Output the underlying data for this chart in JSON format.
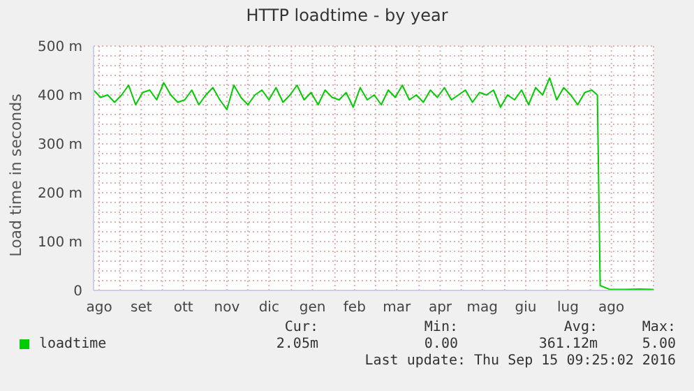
{
  "chart_data": {
    "type": "line",
    "title": "HTTP loadtime - by year",
    "ylabel": "Load time in seconds",
    "x": [
      "2015-08-13",
      "2015-08-18",
      "2015-08-23",
      "2015-08-28",
      "2015-09-02",
      "2015-09-07",
      "2015-09-12",
      "2015-09-17",
      "2015-09-22",
      "2015-09-27",
      "2015-10-02",
      "2015-10-07",
      "2015-10-12",
      "2015-10-17",
      "2015-10-22",
      "2015-10-27",
      "2015-11-01",
      "2015-11-06",
      "2015-11-11",
      "2015-11-16",
      "2015-11-21",
      "2015-11-26",
      "2015-12-01",
      "2015-12-06",
      "2015-12-11",
      "2015-12-16",
      "2015-12-21",
      "2015-12-26",
      "2015-12-31",
      "2016-01-05",
      "2016-01-10",
      "2016-01-15",
      "2016-01-20",
      "2016-01-25",
      "2016-01-30",
      "2016-02-04",
      "2016-02-09",
      "2016-02-14",
      "2016-02-19",
      "2016-02-24",
      "2016-02-29",
      "2016-03-05",
      "2016-03-10",
      "2016-03-15",
      "2016-03-20",
      "2016-03-25",
      "2016-03-30",
      "2016-04-04",
      "2016-04-09",
      "2016-04-14",
      "2016-04-19",
      "2016-04-24",
      "2016-04-29",
      "2016-05-04",
      "2016-05-09",
      "2016-05-14",
      "2016-05-19",
      "2016-05-24",
      "2016-05-29",
      "2016-06-03",
      "2016-06-08",
      "2016-06-13",
      "2016-06-18",
      "2016-06-23",
      "2016-06-28",
      "2016-07-03",
      "2016-07-08",
      "2016-07-13",
      "2016-07-18",
      "2016-07-23",
      "2016-07-28",
      "2016-08-02",
      "2016-08-06",
      "2016-08-08",
      "2016-08-15",
      "2016-08-25",
      "2016-09-05",
      "2016-09-15"
    ],
    "series": [
      {
        "name": "loadtime",
        "color": "#00cc00",
        "values": [
          410,
          395,
          400,
          385,
          400,
          420,
          380,
          405,
          410,
          390,
          425,
          400,
          385,
          390,
          410,
          380,
          400,
          415,
          390,
          370,
          420,
          395,
          380,
          400,
          410,
          390,
          415,
          385,
          400,
          420,
          390,
          405,
          380,
          410,
          395,
          390,
          405,
          375,
          415,
          390,
          400,
          380,
          410,
          395,
          420,
          390,
          400,
          385,
          410,
          395,
          415,
          390,
          400,
          410,
          385,
          405,
          400,
          410,
          375,
          400,
          390,
          410,
          380,
          415,
          400,
          435,
          390,
          415,
          400,
          380,
          405,
          410,
          400,
          10,
          2,
          2,
          3,
          2
        ]
      }
    ],
    "xlim": [
      "2015-08-13",
      "2016-09-15"
    ],
    "xticks": [
      {
        "value": "2015-08-17",
        "label": "ago"
      },
      {
        "value": "2015-09-01",
        "label": null
      },
      {
        "value": "2015-09-16",
        "label": "set"
      },
      {
        "value": "2015-10-01",
        "label": null
      },
      {
        "value": "2015-10-16",
        "label": "ott"
      },
      {
        "value": "2015-11-01",
        "label": null
      },
      {
        "value": "2015-11-16",
        "label": "nov"
      },
      {
        "value": "2015-12-01",
        "label": null
      },
      {
        "value": "2015-12-16",
        "label": "dic"
      },
      {
        "value": "2016-01-01",
        "label": null
      },
      {
        "value": "2016-01-16",
        "label": "gen"
      },
      {
        "value": "2016-02-01",
        "label": null
      },
      {
        "value": "2016-02-15",
        "label": "feb"
      },
      {
        "value": "2016-03-01",
        "label": null
      },
      {
        "value": "2016-03-16",
        "label": "mar"
      },
      {
        "value": "2016-04-01",
        "label": null
      },
      {
        "value": "2016-04-16",
        "label": "apr"
      },
      {
        "value": "2016-05-01",
        "label": null
      },
      {
        "value": "2016-05-16",
        "label": "mag"
      },
      {
        "value": "2016-06-01",
        "label": null
      },
      {
        "value": "2016-06-16",
        "label": "giu"
      },
      {
        "value": "2016-07-01",
        "label": null
      },
      {
        "value": "2016-07-16",
        "label": "lug"
      },
      {
        "value": "2016-08-01",
        "label": null
      },
      {
        "value": "2016-08-16",
        "label": "ago"
      },
      {
        "value": "2016-09-01",
        "label": null
      }
    ],
    "ylim": [
      0,
      500
    ],
    "yticks": [
      0,
      {
        "value": 20,
        "label": null
      },
      {
        "value": 40,
        "label": null
      },
      {
        "value": 60,
        "label": null
      },
      {
        "value": 80,
        "label": null
      },
      {
        "value": 100,
        "label": "100 m"
      },
      {
        "value": 120,
        "label": null
      },
      {
        "value": 140,
        "label": null
      },
      {
        "value": 160,
        "label": null
      },
      {
        "value": 180,
        "label": null
      },
      {
        "value": 200,
        "label": "200 m"
      },
      {
        "value": 220,
        "label": null
      },
      {
        "value": 240,
        "label": null
      },
      {
        "value": 260,
        "label": null
      },
      {
        "value": 280,
        "label": null
      },
      {
        "value": 300,
        "label": "300 m"
      },
      {
        "value": 320,
        "label": null
      },
      {
        "value": 340,
        "label": null
      },
      {
        "value": 360,
        "label": null
      },
      {
        "value": 380,
        "label": null
      },
      {
        "value": 400,
        "label": "400 m"
      },
      {
        "value": 420,
        "label": null
      },
      {
        "value": 440,
        "label": null
      },
      {
        "value": 460,
        "label": null
      },
      {
        "value": 480,
        "label": null
      },
      {
        "value": 500,
        "label": "500 m"
      }
    ],
    "grid": true,
    "legend": "bottom",
    "marker": "none",
    "line_style": "solid",
    "annotations": [
      "Cur:",
      "2.05m",
      "Min:",
      "0.00",
      "Avg:",
      "361.12m",
      "Max:",
      "5.00",
      "Last update:  Thu Sep 15 09:25:02 2016"
    ]
  }
}
